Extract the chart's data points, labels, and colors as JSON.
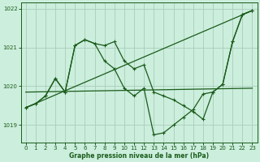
{
  "title": "Graphe pression niveau de la mer (hPa)",
  "background_color": "#cceedd",
  "grid_color": "#aaccbb",
  "line_color": "#1a5c1a",
  "xlim": [
    -0.5,
    23.5
  ],
  "ylim": [
    1018.55,
    1022.15
  ],
  "yticks": [
    1019,
    1020,
    1021,
    1022
  ],
  "xticks": [
    0,
    1,
    2,
    3,
    4,
    5,
    6,
    7,
    8,
    9,
    10,
    11,
    12,
    13,
    14,
    15,
    16,
    17,
    18,
    19,
    20,
    21,
    22,
    23
  ],
  "series1_x": [
    0,
    1,
    2,
    3,
    4,
    5,
    6,
    7,
    8,
    9,
    10,
    11,
    12,
    13,
    14,
    15,
    16,
    17,
    18,
    19,
    20,
    21,
    22,
    23
  ],
  "series1_y": [
    1019.45,
    1019.55,
    1019.75,
    1020.2,
    1019.85,
    1021.05,
    1021.2,
    1021.1,
    1021.05,
    1021.15,
    1020.65,
    1020.45,
    1020.55,
    1019.85,
    1019.75,
    1019.65,
    1019.5,
    1019.35,
    1019.15,
    1019.85,
    1020.05,
    1021.15,
    1021.85,
    1021.95
  ],
  "series2_x": [
    0,
    1,
    2,
    3,
    4,
    5,
    6,
    7,
    8,
    9,
    10,
    11,
    12,
    13,
    14,
    15,
    16,
    17,
    18,
    19,
    20,
    21,
    22,
    23
  ],
  "series2_y": [
    1019.45,
    1019.55,
    1019.75,
    1020.2,
    1019.85,
    1021.05,
    1021.2,
    1021.1,
    1020.65,
    1020.45,
    1019.95,
    1019.75,
    1019.95,
    1018.75,
    1018.8,
    1019.0,
    1019.2,
    1019.4,
    1019.8,
    1019.85,
    1020.05,
    1021.15,
    1021.85,
    1021.95
  ],
  "series3_x": [
    0,
    23
  ],
  "series3_y": [
    1019.45,
    1021.95
  ],
  "series4_x": [
    0,
    23
  ],
  "series4_y": [
    1019.85,
    1019.95
  ]
}
